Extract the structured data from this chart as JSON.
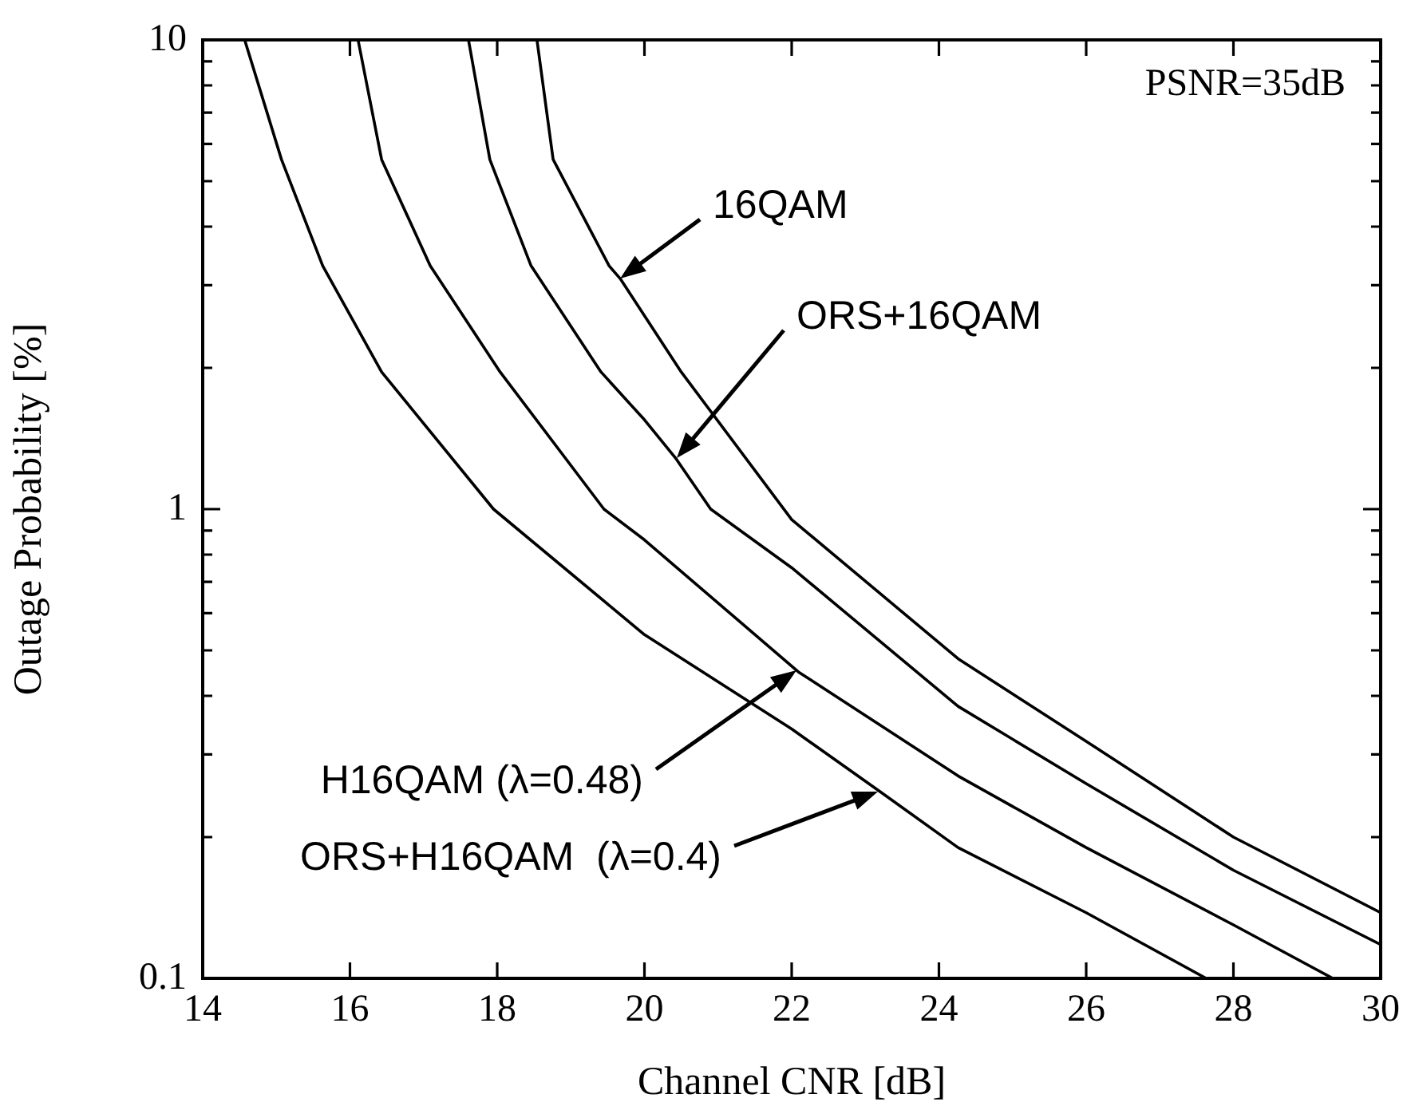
{
  "chart_data": {
    "type": "line",
    "xlabel": "Channel CNR [dB]",
    "ylabel": "Outage Probability [%]",
    "log": "y",
    "xlim": [
      14,
      30
    ],
    "xticks": [
      14,
      16,
      18,
      20,
      22,
      24,
      26,
      28,
      30
    ],
    "ylim": [
      0.1,
      10
    ],
    "yticks": [
      0.1,
      {
        "value": 0.2,
        "label": null
      },
      {
        "value": 0.3,
        "label": null
      },
      {
        "value": 0.4,
        "label": null
      },
      {
        "value": 0.5,
        "label": null
      },
      {
        "value": 0.6,
        "label": null
      },
      {
        "value": 0.7,
        "label": null
      },
      {
        "value": 0.8,
        "label": null
      },
      {
        "value": 0.9,
        "label": null
      },
      1,
      {
        "value": 2,
        "label": null
      },
      {
        "value": 3,
        "label": null
      },
      {
        "value": 4,
        "label": null
      },
      {
        "value": 5,
        "label": null
      },
      {
        "value": 6,
        "label": null
      },
      {
        "value": 7,
        "label": null
      },
      {
        "value": 8,
        "label": null
      },
      {
        "value": 9,
        "label": null
      },
      10
    ],
    "marker": "none",
    "line_style": "solid",
    "legend": false,
    "series": [
      {
        "color": "#000000",
        "x": [
          14.57,
          15.07,
          15.63,
          16.43,
          17.95,
          20,
          22,
          23.2,
          24.26,
          26,
          27.63
        ],
        "values": [
          10,
          5.56,
          3.3,
          1.96,
          1,
          0.54,
          0.34,
          0.25,
          0.19,
          0.138,
          0.1
        ]
      },
      {
        "color": "#000000",
        "x": [
          16.11,
          16.43,
          17.09,
          18.04,
          19.45,
          20,
          22.09,
          24.26,
          26,
          28,
          29.35
        ],
        "values": [
          10,
          5.56,
          3.3,
          1.96,
          1,
          0.86,
          0.45,
          0.27,
          0.19,
          0.13,
          0.1
        ]
      },
      {
        "color": "#000000",
        "x": [
          17.61,
          17.9,
          18.46,
          19.41,
          20,
          20.43,
          20.9,
          22,
          24.26,
          26,
          28,
          30
        ],
        "values": [
          10,
          5.56,
          3.3,
          1.96,
          1.55,
          1.28,
          1,
          0.75,
          0.38,
          0.26,
          0.17,
          0.118
        ]
      },
      {
        "color": "#000000",
        "x": [
          18.54,
          18.76,
          19.52,
          19.67,
          20.5,
          22,
          24.26,
          26,
          28,
          30
        ],
        "values": [
          10,
          5.56,
          3.3,
          3.1,
          1.96,
          0.95,
          0.48,
          0.32,
          0.2,
          0.138
        ]
      }
    ],
    "annotations": [
      "PSNR=35dB",
      {
        "text": "16QAM",
        "x": 19.67,
        "y": 3.1
      },
      "ORS+16QAM",
      "H16QAM (λ=0.48)",
      "ORS+H16QAM  (λ=0.4)"
    ]
  }
}
